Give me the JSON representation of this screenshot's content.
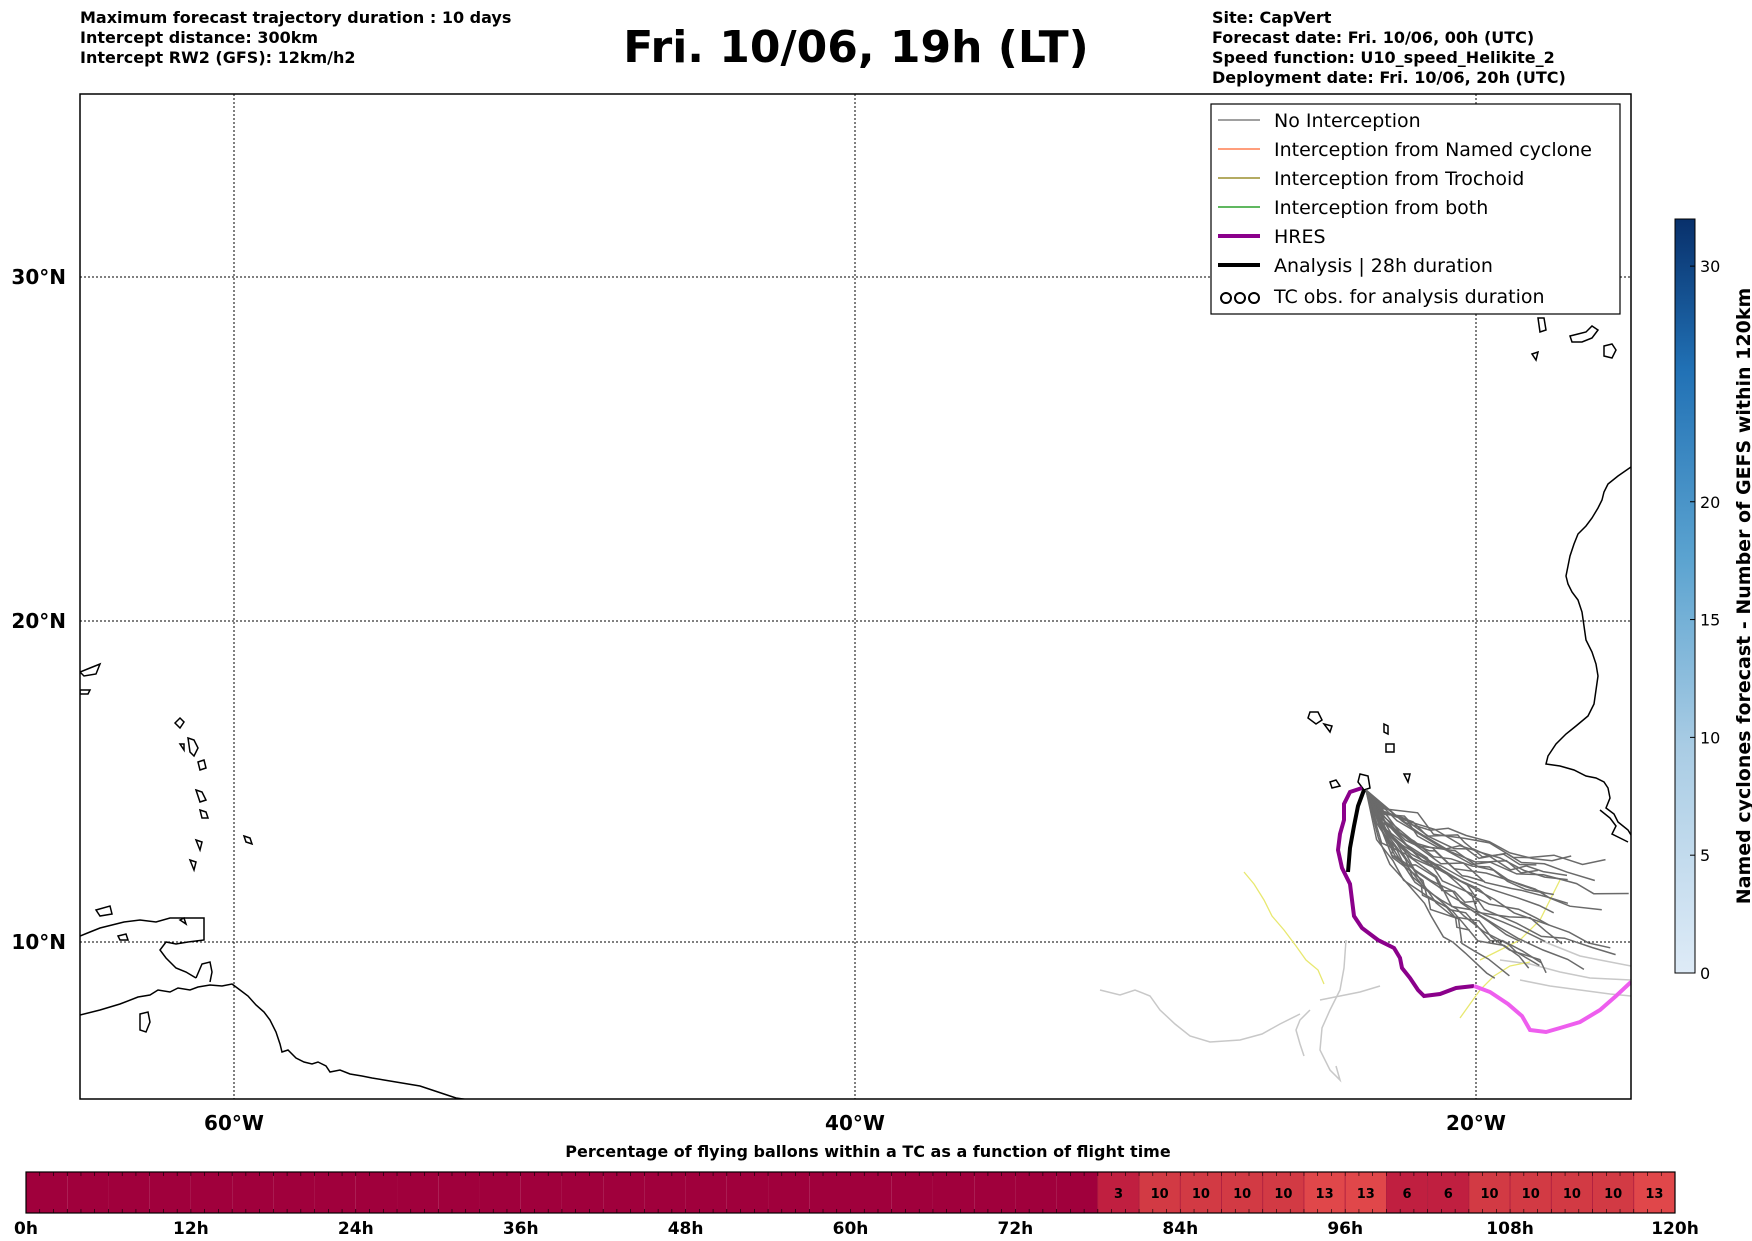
{
  "header": {
    "left_lines": [
      "Maximum forecast trajectory duration : 10 days",
      "Intercept distance: 300km",
      "Intercept RW2 (GFS):  12km/h2"
    ],
    "title": "Fri. 10/06, 19h (LT)",
    "right_lines": [
      "Site: CapVert",
      "Forecast date: Fri. 10/06, 00h (UTC)",
      "Speed function: U10_speed_Helikite_2",
      "Deployment date: Fri. 10/06, 20h (UTC)"
    ]
  },
  "map": {
    "lon_labels": [
      "60°W",
      "40°W",
      "20°W"
    ],
    "lat_labels": [
      "30°N",
      "20°N",
      "10°N"
    ],
    "lon_values": [
      -60,
      -40,
      -20
    ],
    "lat_values": [
      30,
      20,
      10
    ],
    "extent": {
      "lon_min": -65,
      "lon_max": -15,
      "lat_min": 5.5,
      "lat_max": 35.3
    }
  },
  "legend": {
    "items": [
      {
        "label": "No Interception",
        "color": "#808080",
        "style": "thin"
      },
      {
        "label": "Interception from Named cyclone",
        "color": "#ff7f50",
        "style": "thin"
      },
      {
        "label": "Interception from Trochoid",
        "color": "#9c8f2e",
        "style": "thin"
      },
      {
        "label": "Interception from both",
        "color": "#2ca02c",
        "style": "thin"
      },
      {
        "label": "HRES",
        "color": "#8b008b",
        "style": "thick"
      },
      {
        "label": "Analysis | 28h duration",
        "color": "#000000",
        "style": "thick"
      },
      {
        "label": "TC obs. for analysis duration",
        "color": "#000000",
        "style": "cyclone"
      }
    ]
  },
  "colorbar": {
    "label": "Named cyclones forecast - Number of GEFS within 120km",
    "ticks": [
      "0",
      "5",
      "10",
      "15",
      "20",
      "30"
    ],
    "tick_values": [
      0,
      5,
      10,
      15,
      20,
      30
    ]
  },
  "timeline": {
    "title": "Percentage of flying ballons within a TC as a function of flight time",
    "time_labels": [
      "0h",
      "12h",
      "24h",
      "36h",
      "48h",
      "60h",
      "72h",
      "84h",
      "96h",
      "108h",
      "120h"
    ],
    "cell_hours": 3,
    "values": [
      0,
      0,
      0,
      0,
      0,
      0,
      0,
      0,
      0,
      0,
      0,
      0,
      0,
      0,
      0,
      0,
      0,
      0,
      0,
      0,
      0,
      0,
      0,
      0,
      0,
      0,
      3,
      10,
      10,
      10,
      10,
      13,
      13,
      6,
      6,
      10,
      10,
      10,
      10,
      13
    ],
    "colors": {
      "zero": "#a0003c",
      "low": "#c01f40",
      "mid": "#d23a44",
      "high": "#e0474a"
    }
  },
  "colors": {
    "hres": "#8b008b",
    "hres_late": "#ee5eee",
    "analysis": "#000000",
    "no_interception": "#6a6a6a",
    "trochoid": "#e8e870",
    "light": "#c8c8c8"
  }
}
